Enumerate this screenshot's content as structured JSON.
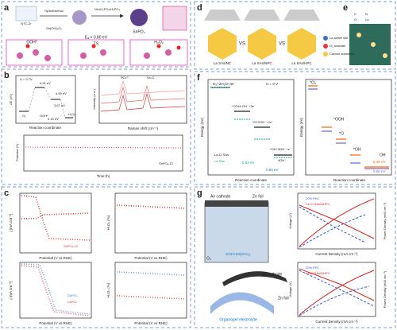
{
  "panels": {
    "a": {
      "label": "a",
      "texts": [
        "NTC-Zr",
        "hydrothermal",
        "Sn(OH)₂O₂",
        "NH₄H₂PO₄/H₃PO₄",
        "SnPO₄",
        "OOH*",
        "Eₐ = 0.80 eV",
        "TS",
        "H₂O₂"
      ]
    },
    "b": {
      "label": "b",
      "texts": [
        "U = 0.7V",
        "ΔE (eV)",
        "4.91 eV",
        "4.59 eV",
        "3.67 eV",
        "3.15 eV",
        "O₂",
        "OOH*",
        "H₂O₂",
        "Reaction coordinate",
        "Intensity (a.u.)",
        "Raman shift (cm⁻¹)",
        "PO₄³⁻",
        "Sn-O",
        "Time (h)",
        "SnPO₄-12",
        "Potential (V)"
      ]
    },
    "c": {
      "label": "c",
      "texts": [
        "j (mA cm⁻²)",
        "H₂O₂ (%)",
        "Potential (V vs.RHE)",
        "SnPO₄-12",
        "GdPO₄",
        "LaPO₄"
      ]
    },
    "d": {
      "label": "d",
      "texts": [
        "VS",
        "La SAs/NC",
        "La SAs/NPC",
        "La SAs/HPC",
        "La active site",
        "O₂ reactant",
        "Carbon substrate"
      ]
    },
    "e": {
      "label": "e",
      "texts": [
        "C",
        "N",
        "O",
        "La"
      ]
    },
    "f": {
      "label": "f",
      "texts": [
        "O₂+2H₂O+4e⁻",
        "U = 0 V",
        "*OOH+OH⁻+3e⁻",
        "*O+2OH⁻+2e⁻",
        "*OH+3OH⁻+e⁻",
        "4OH⁻",
        "0.63 eV",
        "0.84 eV",
        "La-Cl SAs",
        "La SAs",
        "Energy (eV)",
        "Reaction coordinate",
        "*O₂",
        "*OOH",
        "*O",
        "*OH",
        "OH",
        "0.39 eV",
        "0.60 eV"
      ]
    },
    "g": {
      "label": "g",
      "texts": [
        "Air cathode",
        "Zn foil",
        "O₂",
        "KOH+Zn(OAc)₂",
        "Organogel electrolyte",
        "Voltage (V)",
        "Power Density (mW cm⁻²)",
        "Current Density (mA cm⁻²)",
        "20% Pt/C",
        "La-Cl SAs/NHPC"
      ]
    }
  }
}
